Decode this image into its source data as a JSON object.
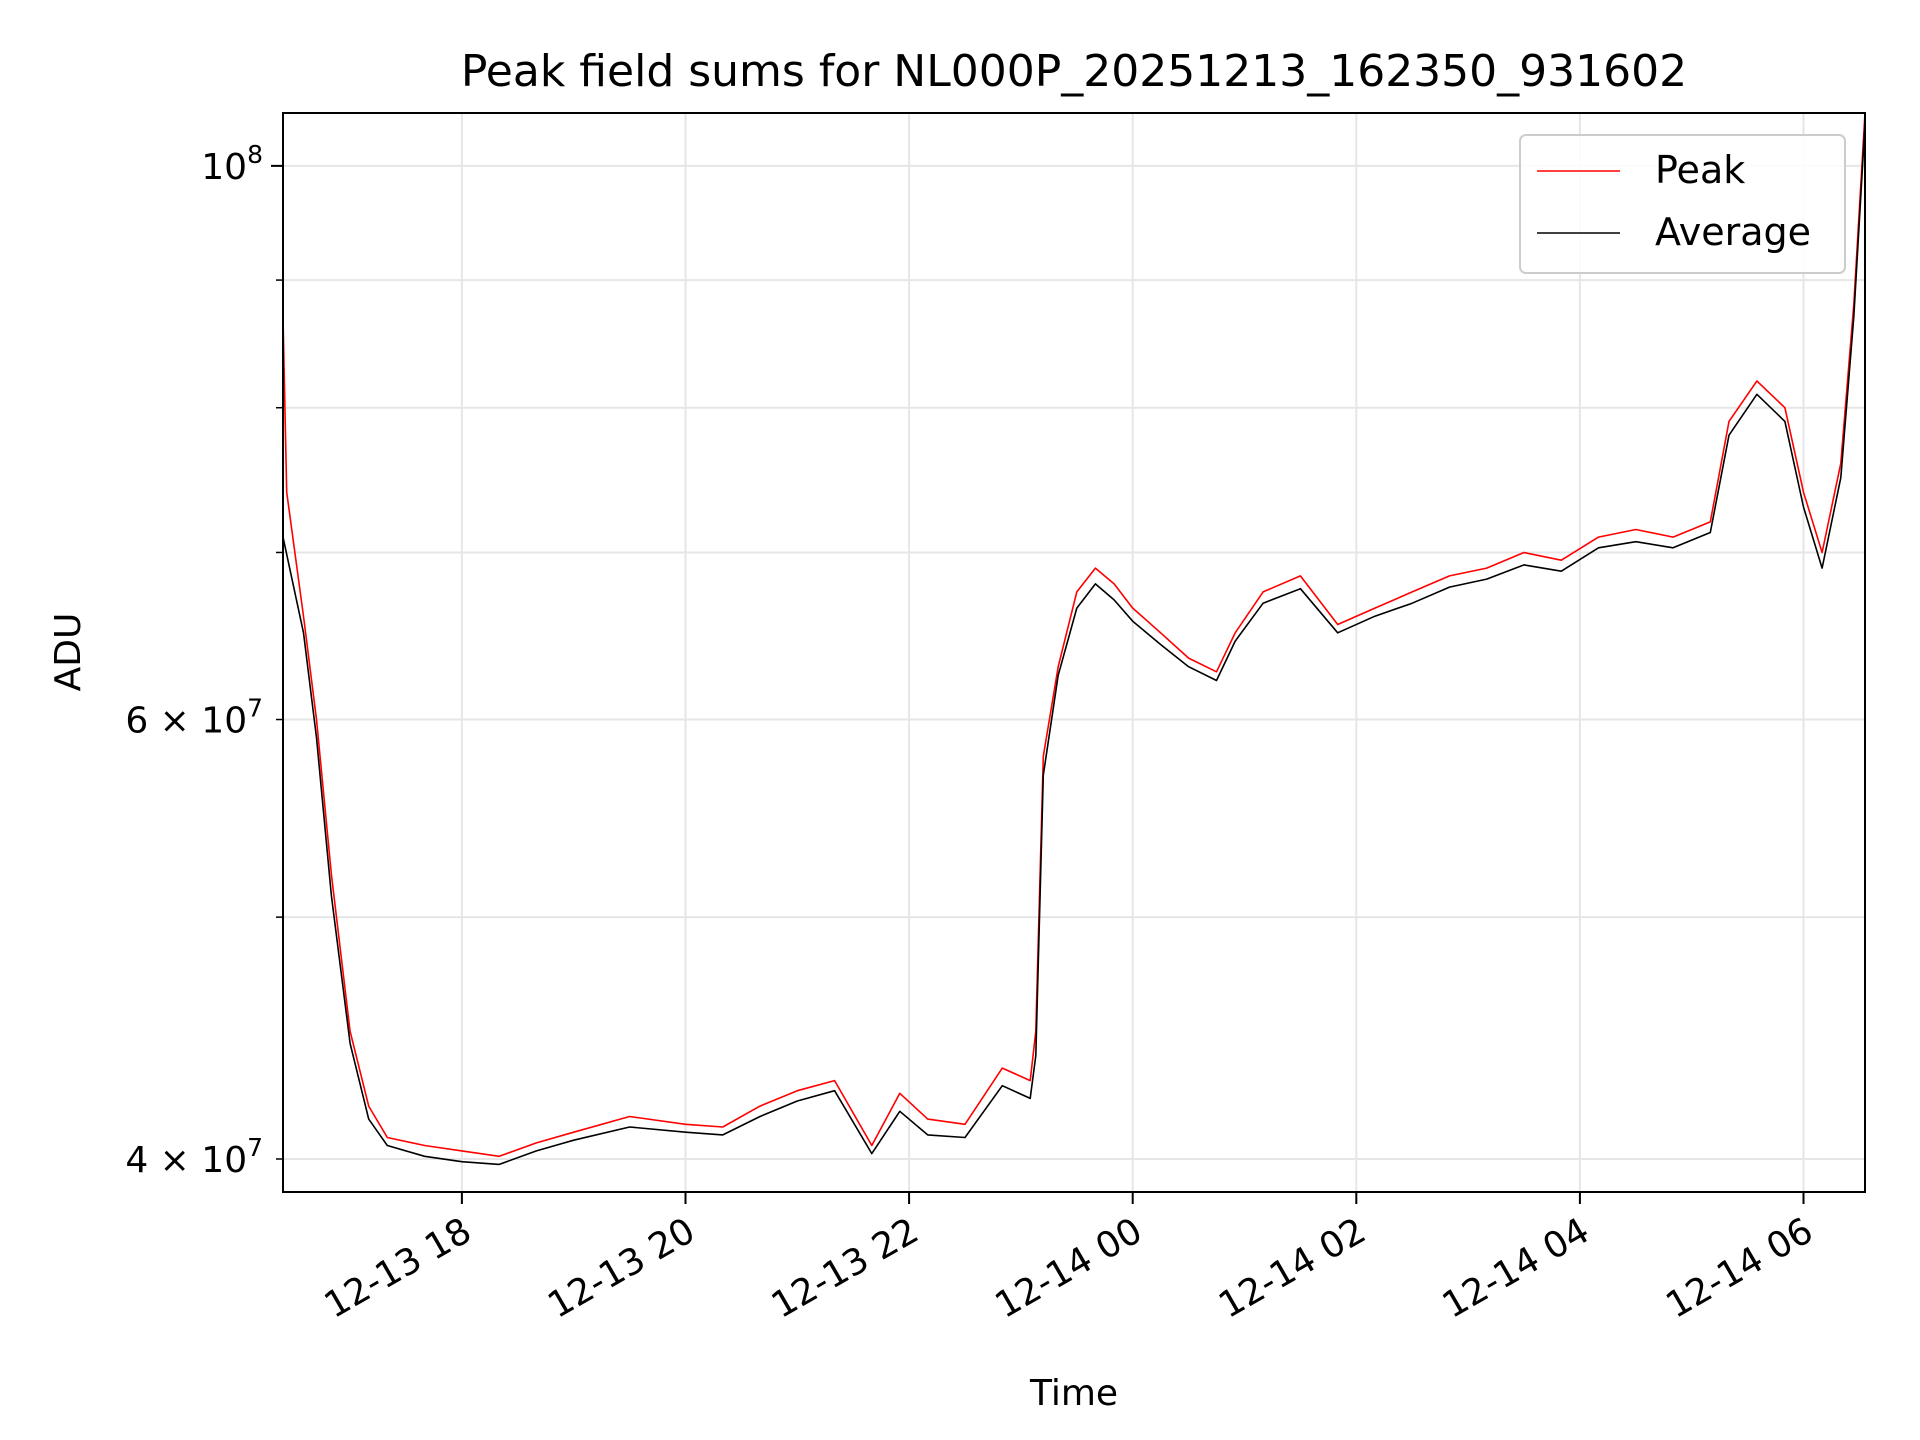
{
  "chart_data": {
    "type": "line",
    "title": "Peak field sums for NL000P_20251213_162350_931602",
    "xlabel": "Time",
    "ylabel": "ADU",
    "y_scale": "log",
    "ylim": [
      38800000,
      105000000
    ],
    "xlim": [
      "2025-12-13 16:24",
      "2025-12-14 06:33"
    ],
    "x_ticks": [
      "12-13 18",
      "12-13 20",
      "12-13 22",
      "12-14 00",
      "12-14 02",
      "12-14 04",
      "12-14 06"
    ],
    "x_tick_times": [
      "2025-12-13 18:00",
      "2025-12-13 20:00",
      "2025-12-13 22:00",
      "2025-12-14 00:00",
      "2025-12-14 02:00",
      "2025-12-14 04:00",
      "2025-12-14 06:00"
    ],
    "y_major_ticks": [
      {
        "value": 100000000,
        "base": "10",
        "exp": "8"
      }
    ],
    "y_minor_ticks": [
      {
        "value": 40000000,
        "mant": "4 × 10",
        "exp": "7"
      },
      {
        "value": 60000000,
        "mant": "6 × 10",
        "exp": "7"
      }
    ],
    "y_unlabeled_minor_ticks": [
      50000000,
      70000000,
      80000000,
      90000000
    ],
    "grid": true,
    "legend_position": "top-right",
    "series": [
      {
        "name": "Peak",
        "color": "#ff0000",
        "points": [
          [
            "2025-12-13 16:24",
            87000000
          ],
          [
            "2025-12-13 16:26",
            74000000
          ],
          [
            "2025-12-13 16:35",
            66000000
          ],
          [
            "2025-12-13 16:42",
            60000000
          ],
          [
            "2025-12-13 16:50",
            52000000
          ],
          [
            "2025-12-13 17:00",
            45000000
          ],
          [
            "2025-12-13 17:10",
            42000000
          ],
          [
            "2025-12-13 17:20",
            40800000
          ],
          [
            "2025-12-13 17:40",
            40500000
          ],
          [
            "2025-12-13 18:00",
            40300000
          ],
          [
            "2025-12-13 18:20",
            40100000
          ],
          [
            "2025-12-13 18:40",
            40600000
          ],
          [
            "2025-12-13 19:00",
            41000000
          ],
          [
            "2025-12-13 19:30",
            41600000
          ],
          [
            "2025-12-13 20:00",
            41300000
          ],
          [
            "2025-12-13 20:20",
            41200000
          ],
          [
            "2025-12-13 20:40",
            42000000
          ],
          [
            "2025-12-13 21:00",
            42600000
          ],
          [
            "2025-12-13 21:20",
            43000000
          ],
          [
            "2025-12-13 21:40",
            40500000
          ],
          [
            "2025-12-13 21:55",
            42500000
          ],
          [
            "2025-12-13 22:10",
            41500000
          ],
          [
            "2025-12-13 22:30",
            41300000
          ],
          [
            "2025-12-13 22:50",
            43500000
          ],
          [
            "2025-12-13 23:05",
            43000000
          ],
          [
            "2025-12-13 23:08",
            45000000
          ],
          [
            "2025-12-13 23:12",
            58000000
          ],
          [
            "2025-12-13 23:20",
            63000000
          ],
          [
            "2025-12-13 23:30",
            67500000
          ],
          [
            "2025-12-13 23:40",
            69000000
          ],
          [
            "2025-12-13 23:50",
            68000000
          ],
          [
            "2025-12-14 00:00",
            66500000
          ],
          [
            "2025-12-14 00:15",
            65000000
          ],
          [
            "2025-12-14 00:30",
            63500000
          ],
          [
            "2025-12-14 00:45",
            62700000
          ],
          [
            "2025-12-14 00:55",
            65000000
          ],
          [
            "2025-12-14 01:10",
            67500000
          ],
          [
            "2025-12-14 01:30",
            68500000
          ],
          [
            "2025-12-14 01:50",
            65500000
          ],
          [
            "2025-12-14 02:10",
            66500000
          ],
          [
            "2025-12-14 02:30",
            67500000
          ],
          [
            "2025-12-14 02:50",
            68500000
          ],
          [
            "2025-12-14 03:10",
            69000000
          ],
          [
            "2025-12-14 03:30",
            70000000
          ],
          [
            "2025-12-14 03:50",
            69500000
          ],
          [
            "2025-12-14 04:10",
            71000000
          ],
          [
            "2025-12-14 04:30",
            71500000
          ],
          [
            "2025-12-14 04:50",
            71000000
          ],
          [
            "2025-12-14 05:10",
            72000000
          ],
          [
            "2025-12-14 05:20",
            79000000
          ],
          [
            "2025-12-14 05:35",
            82000000
          ],
          [
            "2025-12-14 05:50",
            80000000
          ],
          [
            "2025-12-14 06:00",
            74000000
          ],
          [
            "2025-12-14 06:10",
            70000000
          ],
          [
            "2025-12-14 06:20",
            76000000
          ],
          [
            "2025-12-14 06:27",
            88000000
          ],
          [
            "2025-12-14 06:33",
            105000000
          ]
        ]
      },
      {
        "name": "Average",
        "color": "#000000",
        "points": [
          [
            "2025-12-13 16:24",
            71000000
          ],
          [
            "2025-12-13 16:35",
            65000000
          ],
          [
            "2025-12-13 16:42",
            59000000
          ],
          [
            "2025-12-13 16:50",
            51000000
          ],
          [
            "2025-12-13 17:00",
            44500000
          ],
          [
            "2025-12-13 17:10",
            41500000
          ],
          [
            "2025-12-13 17:20",
            40500000
          ],
          [
            "2025-12-13 17:40",
            40100000
          ],
          [
            "2025-12-13 18:00",
            39900000
          ],
          [
            "2025-12-13 18:20",
            39800000
          ],
          [
            "2025-12-13 18:40",
            40300000
          ],
          [
            "2025-12-13 19:00",
            40700000
          ],
          [
            "2025-12-13 19:30",
            41200000
          ],
          [
            "2025-12-13 20:00",
            41000000
          ],
          [
            "2025-12-13 20:20",
            40900000
          ],
          [
            "2025-12-13 20:40",
            41600000
          ],
          [
            "2025-12-13 21:00",
            42200000
          ],
          [
            "2025-12-13 21:20",
            42600000
          ],
          [
            "2025-12-13 21:40",
            40200000
          ],
          [
            "2025-12-13 21:55",
            41800000
          ],
          [
            "2025-12-13 22:10",
            40900000
          ],
          [
            "2025-12-13 22:30",
            40800000
          ],
          [
            "2025-12-13 22:50",
            42800000
          ],
          [
            "2025-12-13 23:05",
            42300000
          ],
          [
            "2025-12-13 23:08",
            44000000
          ],
          [
            "2025-12-13 23:12",
            57000000
          ],
          [
            "2025-12-13 23:20",
            62500000
          ],
          [
            "2025-12-13 23:30",
            66500000
          ],
          [
            "2025-12-13 23:40",
            68000000
          ],
          [
            "2025-12-13 23:50",
            67000000
          ],
          [
            "2025-12-14 00:00",
            65700000
          ],
          [
            "2025-12-14 00:15",
            64300000
          ],
          [
            "2025-12-14 00:30",
            63000000
          ],
          [
            "2025-12-14 00:45",
            62200000
          ],
          [
            "2025-12-14 00:55",
            64500000
          ],
          [
            "2025-12-14 01:10",
            66800000
          ],
          [
            "2025-12-14 01:30",
            67700000
          ],
          [
            "2025-12-14 01:50",
            65000000
          ],
          [
            "2025-12-14 02:10",
            66000000
          ],
          [
            "2025-12-14 02:30",
            66800000
          ],
          [
            "2025-12-14 02:50",
            67800000
          ],
          [
            "2025-12-14 03:10",
            68300000
          ],
          [
            "2025-12-14 03:30",
            69200000
          ],
          [
            "2025-12-14 03:50",
            68800000
          ],
          [
            "2025-12-14 04:10",
            70300000
          ],
          [
            "2025-12-14 04:30",
            70700000
          ],
          [
            "2025-12-14 04:50",
            70300000
          ],
          [
            "2025-12-14 05:10",
            71300000
          ],
          [
            "2025-12-14 05:20",
            78000000
          ],
          [
            "2025-12-14 05:35",
            81000000
          ],
          [
            "2025-12-14 05:50",
            79000000
          ],
          [
            "2025-12-14 06:00",
            73000000
          ],
          [
            "2025-12-14 06:10",
            69000000
          ],
          [
            "2025-12-14 06:20",
            75000000
          ],
          [
            "2025-12-14 06:27",
            87000000
          ],
          [
            "2025-12-14 06:33",
            104000000
          ]
        ]
      }
    ]
  }
}
